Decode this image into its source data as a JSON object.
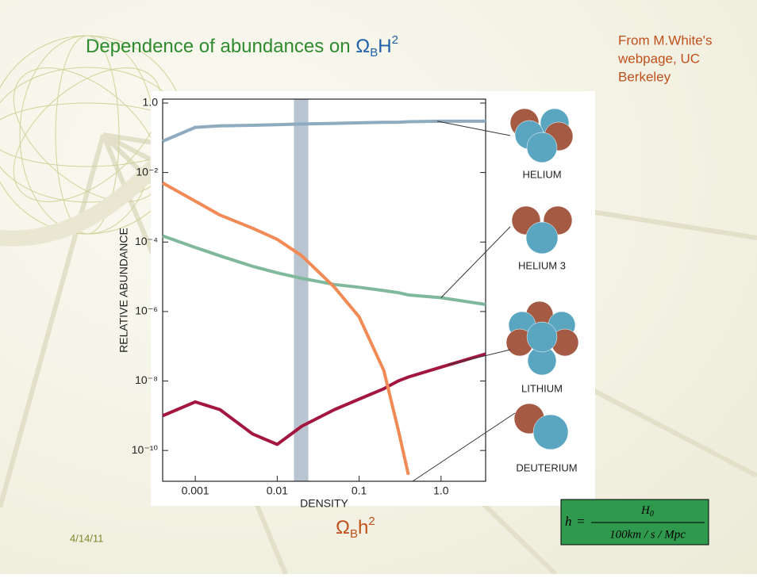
{
  "slide": {
    "title_parts": [
      "Dependence of abundances on ",
      "Ω",
      "B",
      "H",
      "2"
    ],
    "source": [
      "From M.White's",
      "webpage, UC",
      "Berkeley"
    ],
    "caption_parts": [
      "Ω",
      "B",
      "h",
      "2"
    ],
    "date": "4/14/11",
    "formula": {
      "lhs": "h",
      "eq": "=",
      "num": "H",
      "num_sub": "0",
      "den": "100km / s / Mpc"
    }
  },
  "chart_data": {
    "type": "line",
    "x_label": "DENSITY",
    "y_label": "RELATIVE ABUNDANCE",
    "x_log": true,
    "y_log": true,
    "xlim": [
      0.0004,
      3.5
    ],
    "ylim": [
      1.3e-11,
      1.3
    ],
    "xticks": [
      0.001,
      0.01,
      0.1,
      {
        "value": 1,
        "label": "1.0"
      }
    ],
    "yticks": [
      {
        "value": 1,
        "label": "1.0"
      },
      {
        "value": 0.01,
        "label": "10⁻²"
      },
      {
        "value": 0.0001,
        "label": "10⁻⁴"
      },
      {
        "value": 1e-06,
        "label": "10⁻⁶"
      },
      {
        "value": 1e-08,
        "label": "10⁻⁸"
      },
      {
        "value": 1e-10,
        "label": "10⁻¹⁰"
      }
    ],
    "highlight_band": [
      0.016,
      0.024
    ],
    "x": [
      0.0004,
      0.001,
      0.002,
      0.005,
      0.01,
      0.02,
      0.05,
      0.1,
      0.2,
      0.3,
      0.4,
      1,
      3.5
    ],
    "series": [
      {
        "name": "HELIUM",
        "color": "#8eabc0",
        "values": [
          0.08,
          0.2,
          0.22,
          0.23,
          0.24,
          0.25,
          0.26,
          0.27,
          0.28,
          0.28,
          0.29,
          0.3,
          0.3
        ]
      },
      {
        "name": "HELIUM 3",
        "color": "#7fb89a",
        "values": [
          0.00015,
          7e-05,
          4e-05,
          2e-05,
          1.3e-05,
          9e-06,
          6e-06,
          5e-06,
          4e-06,
          3.5e-06,
          3e-06,
          2.5e-06,
          1.6e-06
        ]
      },
      {
        "name": "LITHIUM",
        "color": "#a3163f",
        "values": [
          1e-09,
          2.5e-09,
          1.5e-09,
          3e-10,
          1.5e-10,
          5e-10,
          1.5e-09,
          3e-09,
          6e-09,
          1e-08,
          1.3e-08,
          2.5e-08,
          6e-08
        ]
      },
      {
        "name": "DEUTERIUM",
        "color": "#f28a55",
        "values": [
          0.005,
          0.0015,
          0.0006,
          0.00025,
          0.00012,
          4e-05,
          5e-06,
          7e-07,
          2e-08,
          4e-10,
          2e-11,
          null,
          null
        ]
      }
    ]
  }
}
